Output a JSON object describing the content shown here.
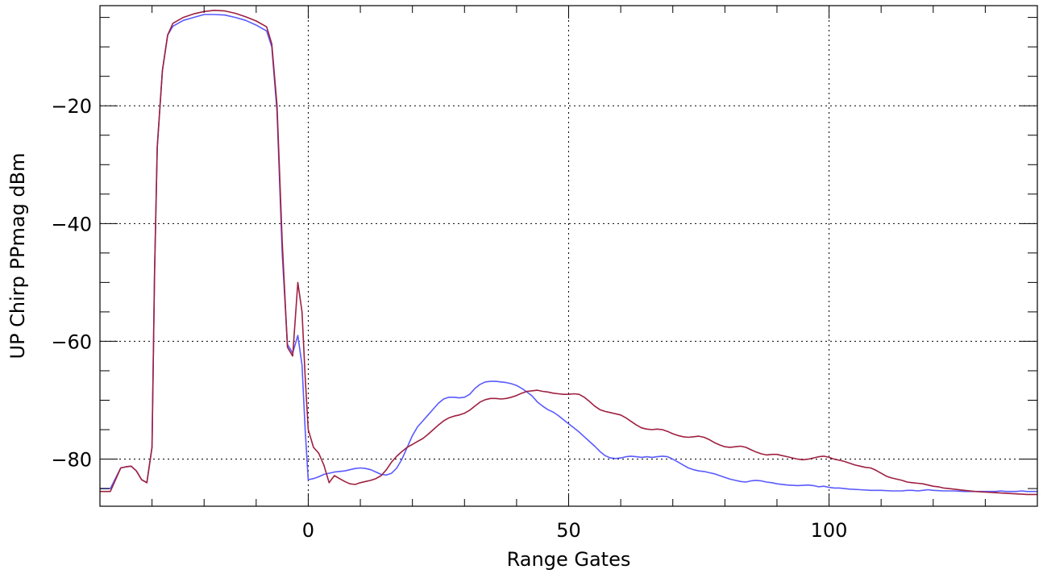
{
  "chart_data": {
    "type": "line",
    "title": "",
    "xlabel": "Range Gates",
    "ylabel": "UP Chirp PPmag dBm",
    "xlim": [
      -40,
      140
    ],
    "ylim": [
      -88,
      -3
    ],
    "x_ticks": [
      0,
      50,
      100
    ],
    "x_tick_labels": [
      "0",
      "50",
      "100"
    ],
    "y_ticks": [
      -20,
      -40,
      -60,
      -80
    ],
    "y_tick_labels": [
      "−20",
      "−40",
      "−60",
      "−80"
    ],
    "x_minor_step": 10,
    "y_minor_step": 5,
    "grid": true,
    "series": [
      {
        "color": "#5a5aff",
        "points": [
          [
            -40,
            -85
          ],
          [
            -38,
            -85
          ],
          [
            -36,
            -81.5
          ],
          [
            -35,
            -81.3
          ],
          [
            -34,
            -81.2
          ],
          [
            -33,
            -82
          ],
          [
            -32,
            -83.5
          ],
          [
            -31,
            -84
          ],
          [
            -30,
            -78
          ],
          [
            -29.5,
            -48
          ],
          [
            -29,
            -27
          ],
          [
            -28,
            -14
          ],
          [
            -27,
            -8
          ],
          [
            -26,
            -6.5
          ],
          [
            -24,
            -5.5
          ],
          [
            -22,
            -5
          ],
          [
            -20,
            -4.5
          ],
          [
            -18,
            -4.5
          ],
          [
            -16,
            -4.6
          ],
          [
            -14,
            -5
          ],
          [
            -12,
            -5.5
          ],
          [
            -10,
            -6.3
          ],
          [
            -8,
            -7.3
          ],
          [
            -7,
            -10
          ],
          [
            -6,
            -21
          ],
          [
            -5,
            -45
          ],
          [
            -4,
            -60.5
          ],
          [
            -3,
            -62
          ],
          [
            -2,
            -59
          ],
          [
            -1.2,
            -64
          ],
          [
            -0.6,
            -75
          ],
          [
            0,
            -83.5
          ],
          [
            1,
            -83.3
          ],
          [
            2,
            -83
          ],
          [
            3,
            -82.6
          ],
          [
            5,
            -82.2
          ],
          [
            7,
            -82
          ],
          [
            8,
            -81.8
          ],
          [
            9,
            -81.6
          ],
          [
            10,
            -81.5
          ],
          [
            11,
            -81.6
          ],
          [
            12,
            -81.8
          ],
          [
            13,
            -82.2
          ],
          [
            14,
            -82.6
          ],
          [
            15,
            -82.7
          ],
          [
            16,
            -82.4
          ],
          [
            17,
            -81.5
          ],
          [
            18,
            -80
          ],
          [
            19,
            -78
          ],
          [
            20,
            -76
          ],
          [
            21,
            -74.5
          ],
          [
            22,
            -73.5
          ],
          [
            23,
            -72.5
          ],
          [
            24,
            -71.5
          ],
          [
            25,
            -70.5
          ],
          [
            26,
            -69.8
          ],
          [
            27,
            -69.5
          ],
          [
            28,
            -69.5
          ],
          [
            29,
            -69.6
          ],
          [
            30,
            -69.5
          ],
          [
            31,
            -69
          ],
          [
            32,
            -68
          ],
          [
            33,
            -67.3
          ],
          [
            34,
            -66.9
          ],
          [
            35,
            -66.8
          ],
          [
            36,
            -66.8
          ],
          [
            37,
            -66.9
          ],
          [
            38,
            -67
          ],
          [
            39,
            -67.2
          ],
          [
            40,
            -67.5
          ],
          [
            41,
            -68
          ],
          [
            42,
            -68.6
          ],
          [
            43,
            -69.3
          ],
          [
            44,
            -70.3
          ],
          [
            45,
            -71
          ],
          [
            46,
            -71.6
          ],
          [
            47,
            -72
          ],
          [
            48,
            -72.6
          ],
          [
            49,
            -73.3
          ],
          [
            50,
            -74
          ],
          [
            51,
            -74.7
          ],
          [
            52,
            -75.4
          ],
          [
            53,
            -76.2
          ],
          [
            54,
            -77
          ],
          [
            55,
            -77.8
          ],
          [
            56,
            -78.7
          ],
          [
            57,
            -79.4
          ],
          [
            58,
            -79.8
          ],
          [
            59,
            -79.9
          ],
          [
            60,
            -79.8
          ],
          [
            61,
            -79.6
          ],
          [
            62,
            -79.5
          ],
          [
            63,
            -79.6
          ],
          [
            64,
            -79.7
          ],
          [
            65,
            -79.6
          ],
          [
            66,
            -79.7
          ],
          [
            67,
            -79.6
          ],
          [
            68,
            -79.5
          ],
          [
            69,
            -79.6
          ],
          [
            70,
            -80
          ],
          [
            71,
            -80.5
          ],
          [
            72,
            -81
          ],
          [
            73,
            -81.5
          ],
          [
            74,
            -81.8
          ],
          [
            75,
            -82
          ],
          [
            76,
            -82.1
          ],
          [
            77,
            -82.3
          ],
          [
            78,
            -82.5
          ],
          [
            79,
            -82.8
          ],
          [
            80,
            -83.1
          ],
          [
            81,
            -83.4
          ],
          [
            82,
            -83.6
          ],
          [
            83,
            -83.8
          ],
          [
            84,
            -83.9
          ],
          [
            85,
            -83.7
          ],
          [
            86,
            -83.6
          ],
          [
            87,
            -83.7
          ],
          [
            88,
            -83.9
          ],
          [
            89,
            -84
          ],
          [
            90,
            -84.2
          ],
          [
            92,
            -84.4
          ],
          [
            94,
            -84.5
          ],
          [
            96,
            -84.4
          ],
          [
            97,
            -84.5
          ],
          [
            98,
            -84.7
          ],
          [
            99,
            -84.6
          ],
          [
            100,
            -84.8
          ],
          [
            101,
            -84.9
          ],
          [
            102,
            -84.9
          ],
          [
            104,
            -85.1
          ],
          [
            106,
            -85.2
          ],
          [
            108,
            -85.3
          ],
          [
            110,
            -85.3
          ],
          [
            112,
            -85.4
          ],
          [
            114,
            -85.4
          ],
          [
            115,
            -85.3
          ],
          [
            116,
            -85.3
          ],
          [
            117,
            -85.4
          ],
          [
            118,
            -85.3
          ],
          [
            119,
            -85.2
          ],
          [
            120,
            -85.3
          ],
          [
            122,
            -85.4
          ],
          [
            124,
            -85.4
          ],
          [
            126,
            -85.5
          ],
          [
            128,
            -85.5
          ],
          [
            130,
            -85.5
          ],
          [
            132,
            -85.5
          ],
          [
            133,
            -85.4
          ],
          [
            134,
            -85.5
          ],
          [
            136,
            -85.5
          ],
          [
            137,
            -85.4
          ],
          [
            138,
            -85.5
          ],
          [
            140,
            -85.5
          ]
        ]
      },
      {
        "color": "#9e2040",
        "points": [
          [
            -40,
            -85.5
          ],
          [
            -38,
            -85.5
          ],
          [
            -36,
            -81.5
          ],
          [
            -35,
            -81.3
          ],
          [
            -34,
            -81.2
          ],
          [
            -33,
            -82
          ],
          [
            -32,
            -83.5
          ],
          [
            -31,
            -84
          ],
          [
            -30,
            -78
          ],
          [
            -29.5,
            -48
          ],
          [
            -29,
            -27
          ],
          [
            -28,
            -14
          ],
          [
            -27,
            -8
          ],
          [
            -26,
            -6
          ],
          [
            -24,
            -5
          ],
          [
            -22,
            -4.4
          ],
          [
            -20,
            -4
          ],
          [
            -18,
            -3.8
          ],
          [
            -16,
            -3.9
          ],
          [
            -14,
            -4.3
          ],
          [
            -12,
            -4.9
          ],
          [
            -10,
            -5.6
          ],
          [
            -8,
            -6.6
          ],
          [
            -7,
            -9.5
          ],
          [
            -6,
            -20
          ],
          [
            -5,
            -43
          ],
          [
            -4,
            -61
          ],
          [
            -3,
            -62.5
          ],
          [
            -2,
            -50
          ],
          [
            -1.2,
            -55
          ],
          [
            -0.6,
            -66
          ],
          [
            0,
            -75
          ],
          [
            1,
            -78
          ],
          [
            2,
            -79
          ],
          [
            3,
            -81
          ],
          [
            4,
            -84
          ],
          [
            5,
            -82.8
          ],
          [
            6,
            -83.3
          ],
          [
            7,
            -83.8
          ],
          [
            8,
            -84.2
          ],
          [
            9,
            -84.3
          ],
          [
            10,
            -84
          ],
          [
            11,
            -83.8
          ],
          [
            12,
            -83.6
          ],
          [
            13,
            -83.3
          ],
          [
            14,
            -82.8
          ],
          [
            15,
            -81.8
          ],
          [
            16,
            -80.5
          ],
          [
            17,
            -79.5
          ],
          [
            18,
            -78.7
          ],
          [
            19,
            -78
          ],
          [
            20,
            -77.5
          ],
          [
            21,
            -77
          ],
          [
            22,
            -76.5
          ],
          [
            23,
            -75.8
          ],
          [
            24,
            -75
          ],
          [
            25,
            -74.2
          ],
          [
            26,
            -73.5
          ],
          [
            27,
            -73
          ],
          [
            28,
            -72.7
          ],
          [
            29,
            -72.5
          ],
          [
            30,
            -72.2
          ],
          [
            31,
            -71.7
          ],
          [
            32,
            -71
          ],
          [
            33,
            -70.3
          ],
          [
            34,
            -69.9
          ],
          [
            35,
            -69.7
          ],
          [
            36,
            -69.7
          ],
          [
            37,
            -69.8
          ],
          [
            38,
            -69.7
          ],
          [
            39,
            -69.5
          ],
          [
            40,
            -69.2
          ],
          [
            41,
            -68.8
          ],
          [
            42,
            -68.5
          ],
          [
            43,
            -68.4
          ],
          [
            44,
            -68.3
          ],
          [
            45,
            -68.5
          ],
          [
            46,
            -68.6
          ],
          [
            47,
            -68.8
          ],
          [
            48,
            -68.9
          ],
          [
            49,
            -69
          ],
          [
            50,
            -69
          ],
          [
            51,
            -68.9
          ],
          [
            52,
            -69
          ],
          [
            53,
            -69.5
          ],
          [
            54,
            -70.2
          ],
          [
            55,
            -71
          ],
          [
            56,
            -71.6
          ],
          [
            57,
            -71.9
          ],
          [
            58,
            -72.1
          ],
          [
            59,
            -72.3
          ],
          [
            60,
            -72.5
          ],
          [
            61,
            -73
          ],
          [
            62,
            -73.6
          ],
          [
            63,
            -74.2
          ],
          [
            64,
            -74.7
          ],
          [
            65,
            -74.9
          ],
          [
            66,
            -75
          ],
          [
            67,
            -74.9
          ],
          [
            68,
            -75
          ],
          [
            69,
            -75.3
          ],
          [
            70,
            -75.7
          ],
          [
            71,
            -76
          ],
          [
            72,
            -76.2
          ],
          [
            73,
            -76.3
          ],
          [
            74,
            -76.2
          ],
          [
            75,
            -76.1
          ],
          [
            76,
            -76.3
          ],
          [
            77,
            -76.7
          ],
          [
            78,
            -77.2
          ],
          [
            79,
            -77.6
          ],
          [
            80,
            -77.9
          ],
          [
            81,
            -78
          ],
          [
            82,
            -77.9
          ],
          [
            83,
            -77.8
          ],
          [
            84,
            -78
          ],
          [
            85,
            -78.4
          ],
          [
            86,
            -78.8
          ],
          [
            87,
            -79.1
          ],
          [
            88,
            -79.3
          ],
          [
            89,
            -79.2
          ],
          [
            90,
            -79.2
          ],
          [
            91,
            -79.4
          ],
          [
            92,
            -79.6
          ],
          [
            93,
            -79.8
          ],
          [
            94,
            -80
          ],
          [
            95,
            -80.1
          ],
          [
            96,
            -80
          ],
          [
            97,
            -79.8
          ],
          [
            98,
            -79.6
          ],
          [
            99,
            -79.5
          ],
          [
            100,
            -79.7
          ],
          [
            101,
            -80
          ],
          [
            102,
            -80.2
          ],
          [
            103,
            -80.4
          ],
          [
            104,
            -80.7
          ],
          [
            105,
            -81
          ],
          [
            106,
            -81.2
          ],
          [
            107,
            -81.4
          ],
          [
            108,
            -81.5
          ],
          [
            109,
            -81.9
          ],
          [
            110,
            -82.4
          ],
          [
            111,
            -82.9
          ],
          [
            112,
            -83.2
          ],
          [
            113,
            -83.4
          ],
          [
            114,
            -83.6
          ],
          [
            115,
            -83.9
          ],
          [
            116,
            -84
          ],
          [
            117,
            -84.1
          ],
          [
            118,
            -84.2
          ],
          [
            119,
            -84.4
          ],
          [
            120,
            -84.6
          ],
          [
            121,
            -84.7
          ],
          [
            122,
            -84.9
          ],
          [
            123,
            -85
          ],
          [
            124,
            -85.1
          ],
          [
            126,
            -85.3
          ],
          [
            128,
            -85.5
          ],
          [
            130,
            -85.6
          ],
          [
            132,
            -85.7
          ],
          [
            134,
            -85.8
          ],
          [
            136,
            -85.9
          ],
          [
            138,
            -86
          ],
          [
            140,
            -86
          ]
        ]
      }
    ]
  }
}
